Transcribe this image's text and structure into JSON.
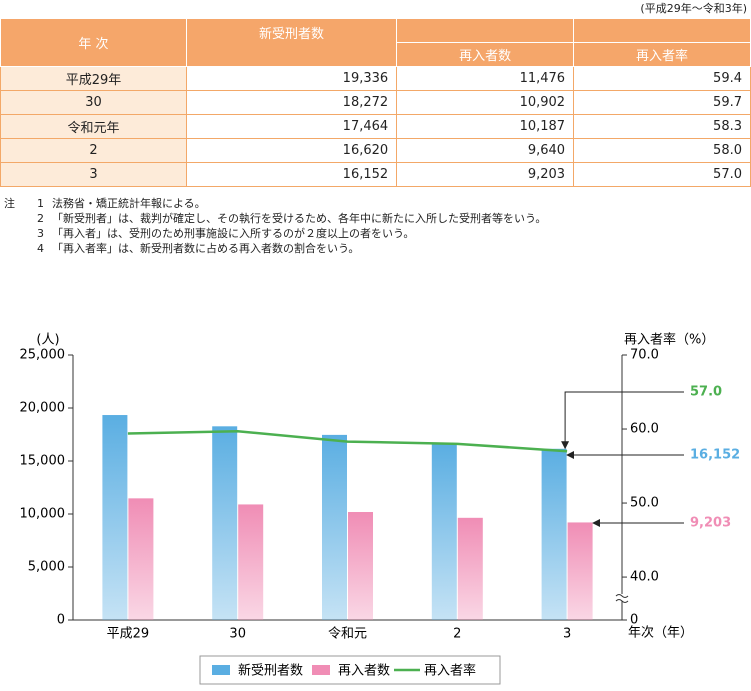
{
  "period_note": "(平成29年〜令和3年)",
  "table": {
    "header": [
      "年 次",
      "新受刑者数",
      "再入者数",
      "再入者率"
    ],
    "rows": [
      [
        "平成29年",
        "19,336",
        "11,476",
        "59.4"
      ],
      [
        "30",
        "18,272",
        "10,902",
        "59.7"
      ],
      [
        "令和元年",
        "17,464",
        "10,187",
        "58.3"
      ],
      [
        "2",
        "16,620",
        "9,640",
        "58.0"
      ],
      [
        "3",
        "16,152",
        "9,203",
        "57.0"
      ]
    ]
  },
  "notes": {
    "label": "注",
    "items": [
      [
        "1",
        "法務省・矯正統計年報による。"
      ],
      [
        "2",
        "「新受刑者」は、裁判が確定し、その執行を受けるため、各年中に新たに入所した受刑者等をいう。"
      ],
      [
        "3",
        "「再入者」は、受刑のため刑事施設に入所するのが２度以上の者をいう。"
      ],
      [
        "4",
        "「再入者率」は、新受刑者数に占める再入者数の割合をいう。"
      ]
    ]
  },
  "chart_data": {
    "type": "bar",
    "y_label": "(人)",
    "y2_label": "再入者率（%）",
    "x_label": "年次（年）",
    "categories": [
      "平成29",
      "30",
      "令和元",
      "2",
      "3"
    ],
    "series": [
      {
        "name": "新受刑者数",
        "type": "bar",
        "color": "#5aaee2",
        "values": [
          19336,
          18272,
          17464,
          16620,
          16152
        ],
        "value_labels": [
          null,
          null,
          null,
          null,
          "16,152"
        ]
      },
      {
        "name": "再入者数",
        "type": "bar",
        "color": "#f08db5",
        "values": [
          11476,
          10902,
          10187,
          9640,
          9203
        ],
        "value_labels": [
          null,
          null,
          null,
          null,
          "9,203"
        ]
      },
      {
        "name": "再入者率",
        "type": "line",
        "axis": "y2",
        "color": "#4cb050",
        "values": [
          59.4,
          59.7,
          58.3,
          58.0,
          57.0
        ],
        "value_labels": [
          null,
          null,
          null,
          null,
          "57.0"
        ]
      }
    ],
    "ylim": [
      0,
      25000
    ],
    "yticks": [
      0,
      {
        "value": 5000,
        "label": "5,000"
      },
      {
        "value": 10000,
        "label": "10,000"
      },
      {
        "value": 15000,
        "label": "15,000"
      },
      {
        "value": 20000,
        "label": "20,000"
      },
      {
        "value": 25000,
        "label": "25,000"
      }
    ],
    "y2lim": [
      34.2,
      70
    ],
    "y2ticks": [
      0,
      {
        "value": 40,
        "label": "40.0"
      },
      {
        "value": 50,
        "label": "50.0"
      },
      {
        "value": 60,
        "label": "60.0"
      },
      {
        "value": 70,
        "label": "70.0"
      }
    ],
    "y2_axis_break": true,
    "grid": false,
    "legend": "bottom"
  }
}
